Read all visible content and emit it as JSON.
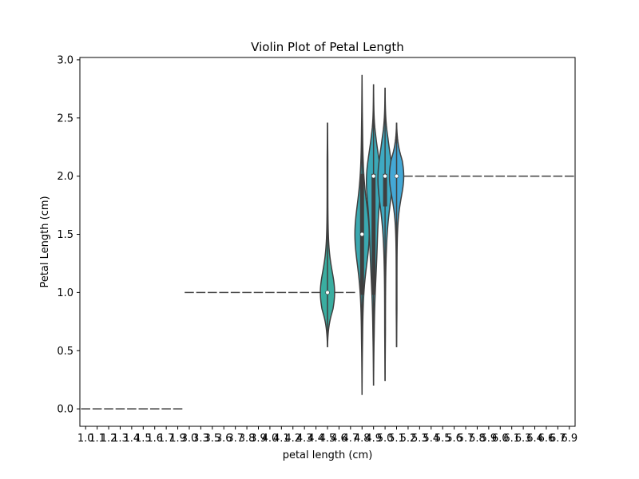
{
  "chart_data": {
    "type": "violin",
    "title": "Violin Plot of Petal Length",
    "xlabel": "petal length (cm)",
    "ylabel": "Petal Length (cm)",
    "ylim": [
      -0.15,
      3.02
    ],
    "yticks": [
      "0.0",
      "0.5",
      "1.0",
      "1.5",
      "2.0",
      "2.5",
      "3.0"
    ],
    "grid": false,
    "legend": "none",
    "categories": [
      "1.0",
      "1.1",
      "1.2",
      "1.3",
      "1.4",
      "1.5",
      "1.6",
      "1.7",
      "1.9",
      "3.0",
      "3.3",
      "3.5",
      "3.6",
      "3.7",
      "3.8",
      "3.9",
      "4.0",
      "4.1",
      "4.2",
      "4.3",
      "4.4",
      "4.5",
      "4.6",
      "4.7",
      "4.8",
      "4.9",
      "5.0",
      "5.1",
      "5.2",
      "5.3",
      "5.4",
      "5.5",
      "5.6",
      "5.7",
      "5.8",
      "5.9",
      "6.0",
      "6.1",
      "6.3",
      "6.4",
      "6.6",
      "6.7",
      "6.9"
    ],
    "violins": [
      {
        "category": "4.5",
        "min": 0.53,
        "max": 2.46,
        "median": 1.0,
        "q1": 1.0,
        "q3": 1.0,
        "color": "#3aada0"
      },
      {
        "category": "4.8",
        "min": 0.12,
        "max": 2.87,
        "median": 1.5,
        "q1": 0.98,
        "q3": 2.02,
        "color": "#3aa8b0"
      },
      {
        "category": "4.9",
        "min": 0.2,
        "max": 2.79,
        "median": 2.0,
        "q1": 0.98,
        "q3": 2.02,
        "color": "#3ba9b8"
      },
      {
        "category": "5.0",
        "min": 0.24,
        "max": 2.76,
        "median": 2.0,
        "q1": 1.74,
        "q3": 2.02,
        "color": "#3eaac2"
      },
      {
        "category": "5.1",
        "min": 0.53,
        "max": 2.46,
        "median": 2.0,
        "q1": 2.0,
        "q3": 2.0,
        "color": "#44a8d6"
      }
    ],
    "flat_values": {
      "0.0": [
        "1.0",
        "1.1",
        "1.2",
        "1.3",
        "1.4",
        "1.5",
        "1.6",
        "1.7",
        "1.9"
      ],
      "1.0": [
        "3.0",
        "3.3",
        "3.5",
        "3.6",
        "3.7",
        "3.8",
        "3.9",
        "4.0",
        "4.1",
        "4.2",
        "4.3",
        "4.4",
        "4.6",
        "4.7"
      ],
      "2.0": [
        "5.2",
        "5.3",
        "5.4",
        "5.5",
        "5.6",
        "5.7",
        "5.8",
        "5.9",
        "6.0",
        "6.1",
        "6.3",
        "6.4",
        "6.6",
        "6.7",
        "6.9"
      ]
    }
  }
}
